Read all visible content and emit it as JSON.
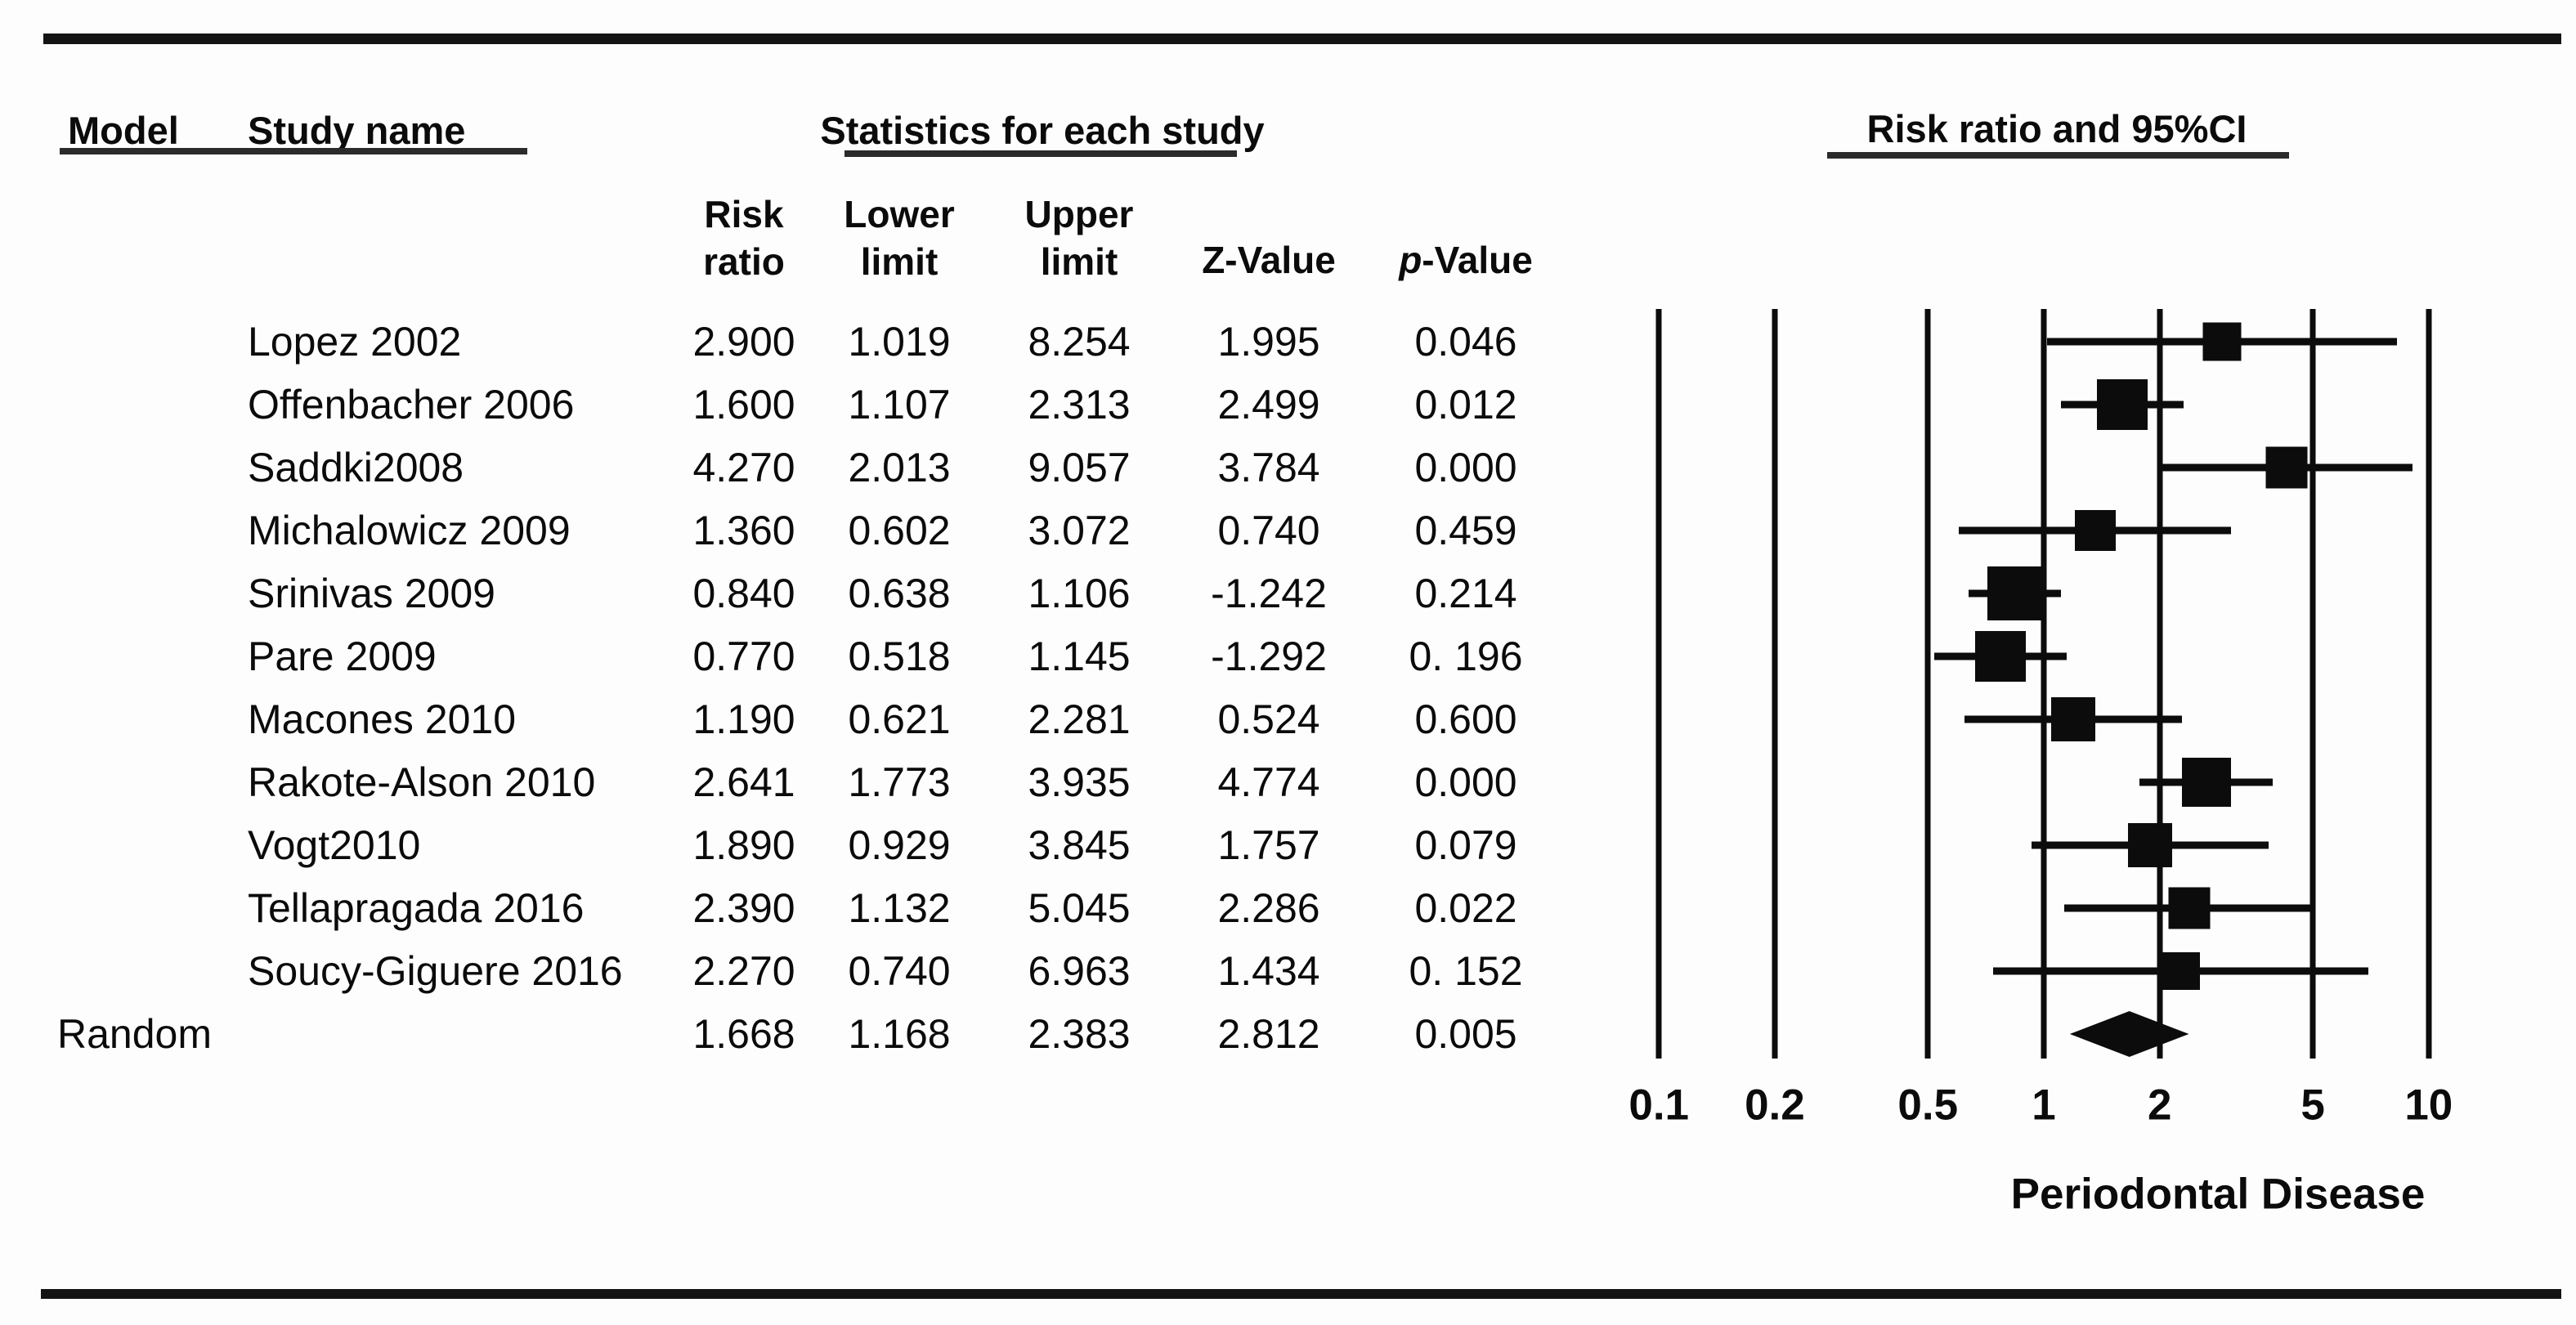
{
  "figure": {
    "headers": {
      "model": "Model",
      "study_name": "Study name",
      "stats_group": "Statistics for each study",
      "ci_group": "Risk ratio and 95%CI"
    },
    "columns": {
      "risk_ratio_line1": "Risk",
      "risk_ratio_line2": "ratio",
      "lower_line1": "Lower",
      "lower_line2": "limit",
      "upper_line1": "Upper",
      "upper_line2": "limit",
      "z_label": "Z-Value",
      "p_label_italic": "p",
      "p_label_rest": "-Value"
    },
    "xlabel": "Periodontal Disease"
  },
  "chart_data": {
    "type": "scatter",
    "variant": "forest-plot-meta-analysis",
    "x_scale": "log10",
    "x_ticks": [
      0.1,
      0.2,
      0.5,
      1,
      2,
      5,
      10
    ],
    "x_tick_labels": [
      "0.1",
      "0.2",
      "0.5",
      "1",
      "2",
      "5",
      "10"
    ],
    "x_range": [
      0.1,
      10
    ],
    "grid": "vertical-lines-at-ticks",
    "xlabel": "Periodontal Disease",
    "marker_color": "#0c0c0c",
    "studies": [
      {
        "name": "Lopez 2002",
        "risk_ratio": "2.900",
        "lower": "1.019",
        "upper": "8.254",
        "z": "1.995",
        "p": "0.046",
        "marker_size": 47
      },
      {
        "name": "Offenbacher 2006",
        "risk_ratio": "1.600",
        "lower": "1.107",
        "upper": "2.313",
        "z": "2.499",
        "p": "0.012",
        "marker_size": 62
      },
      {
        "name": "Saddki2008",
        "risk_ratio": "4.270",
        "lower": "2.013",
        "upper": "9.057",
        "z": "3.784",
        "p": "0.000",
        "marker_size": 51
      },
      {
        "name": "Michalowicz 2009",
        "risk_ratio": "1.360",
        "lower": "0.602",
        "upper": "3.072",
        "z": "0.740",
        "p": "0.459",
        "marker_size": 50
      },
      {
        "name": "Srinivas 2009",
        "risk_ratio": "0.840",
        "lower": "0.638",
        "upper": "1.106",
        "z": "-1.242",
        "p": "0.214",
        "marker_size": 66
      },
      {
        "name": "Pare 2009",
        "risk_ratio": "0.770",
        "lower": "0.518",
        "upper": "1.145",
        "z": "-1.292",
        "p": "0. 196",
        "marker_size": 62
      },
      {
        "name": "Macones 2010",
        "risk_ratio": "1.190",
        "lower": "0.621",
        "upper": "2.281",
        "z": "0.524",
        "p": "0.600",
        "marker_size": 54
      },
      {
        "name": "Rakote-Alson 2010",
        "risk_ratio": "2.641",
        "lower": "1.773",
        "upper": "3.935",
        "z": "4.774",
        "p": "0.000",
        "marker_size": 60
      },
      {
        "name": "Vogt2010",
        "risk_ratio": "1.890",
        "lower": "0.929",
        "upper": "3.845",
        "z": "1.757",
        "p": "0.079",
        "marker_size": 54
      },
      {
        "name": "Tellapragada 2016",
        "risk_ratio": "2.390",
        "lower": "1.132",
        "upper": "5.045",
        "z": "2.286",
        "p": "0.022",
        "marker_size": 51
      },
      {
        "name": "Soucy-Giguere 2016",
        "risk_ratio": "2.270",
        "lower": "0.740",
        "upper": "6.963",
        "z": "1.434",
        "p": "0. 152",
        "marker_size": 46
      }
    ],
    "summary": {
      "model": "Random",
      "risk_ratio": "1.668",
      "lower": "1.168",
      "upper": "2.383",
      "z": "2.812",
      "p": "0.005",
      "marker": "diamond"
    }
  }
}
